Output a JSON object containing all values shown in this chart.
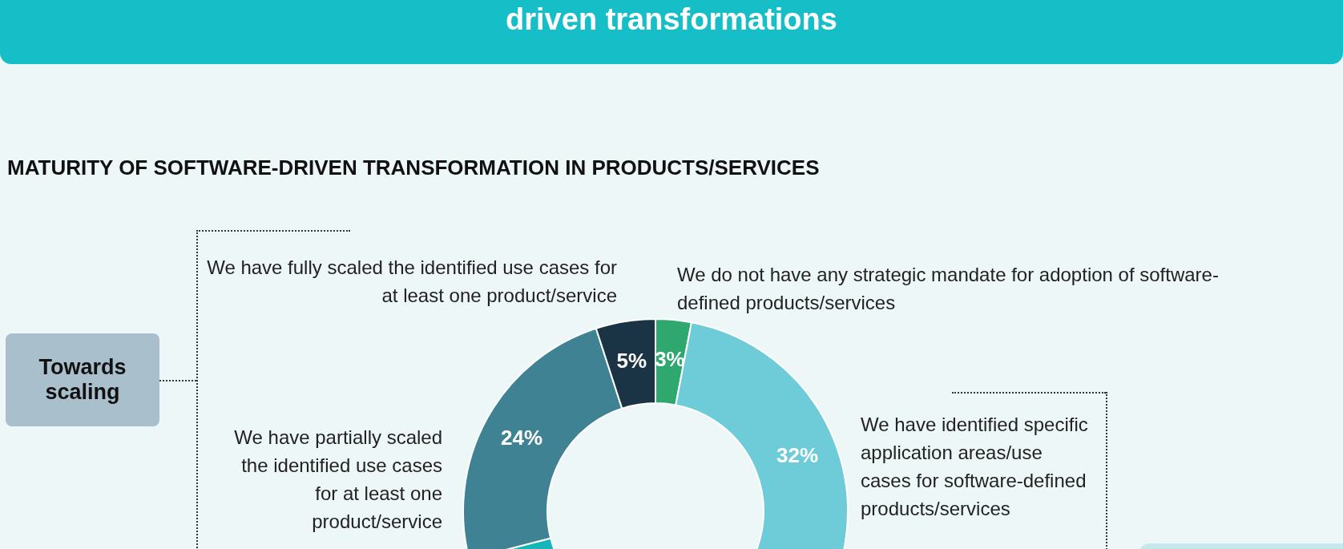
{
  "chart_data": {
    "type": "donut",
    "title": "driven transformations",
    "subtitle": "MATURITY OF SOFTWARE-DRIVEN TRANSFORMATION IN PRODUCTS/SERVICES",
    "categories": [
      "We do not have any strategic mandate for adoption of software-defined products/services",
      "We have identified specific application areas/use cases for software-defined products/services",
      null,
      "We have partially scaled the identified use cases for at least one product/service",
      "We have fully scaled the identified use cases for at least one product/service"
    ],
    "values": [
      3,
      32,
      36,
      24,
      5
    ],
    "colors": [
      "#2ea86f",
      "#6ecbd8",
      "#14b5bb",
      "#3f8294",
      "#1b3445"
    ],
    "value_labels": [
      "3%",
      "32%",
      null,
      "24%",
      "5%"
    ],
    "annotations": [
      "Towards scaling"
    ],
    "legend": false
  }
}
